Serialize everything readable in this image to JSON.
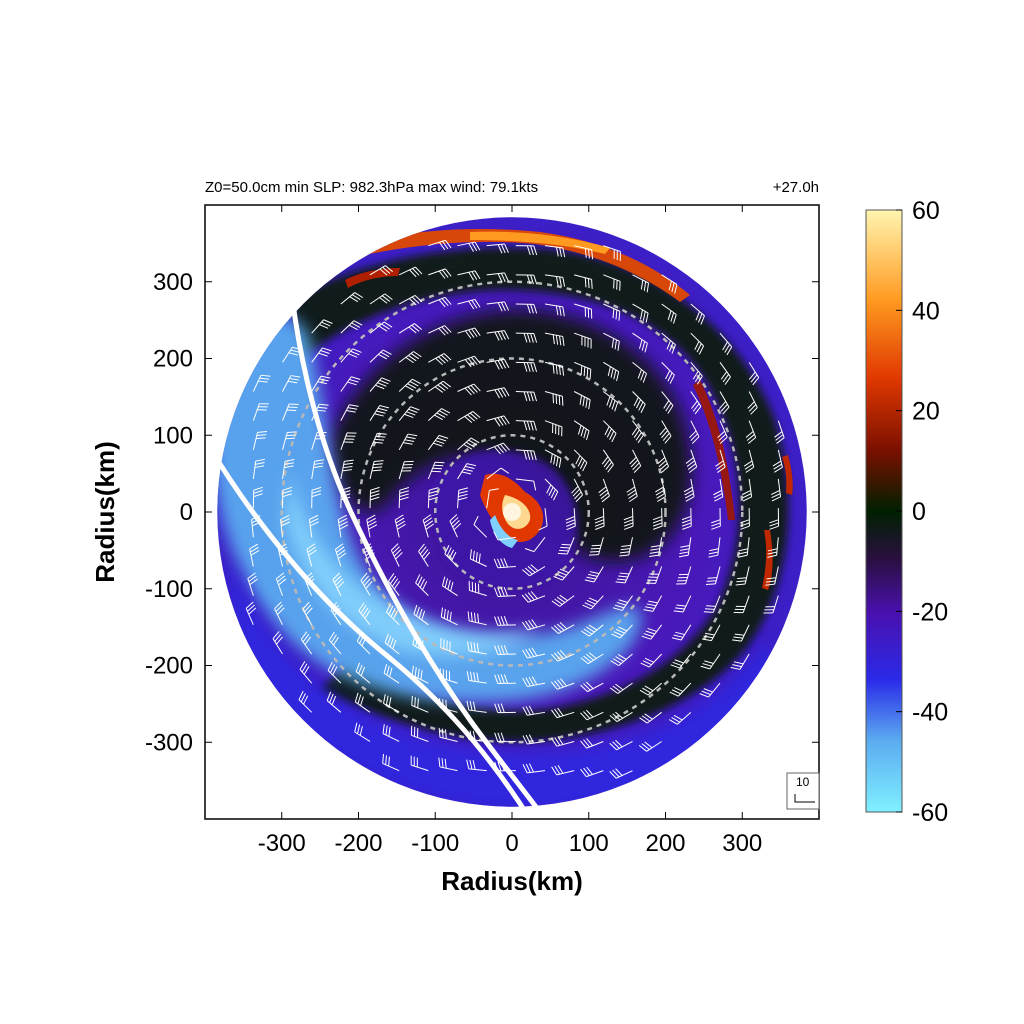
{
  "header": {
    "left_text": "Z0=50.0cm  min SLP: 982.3hPa   max wind: 79.1kts",
    "right_text": "+27.0h"
  },
  "chart_data": {
    "type": "heatmap",
    "projection": "polar storm-centered field on x/y radius grid",
    "xlabel": "Radius(km)",
    "ylabel": "Radius(km)",
    "xlim": [
      -400,
      400
    ],
    "ylim": [
      -400,
      400
    ],
    "x_ticks": [
      -300,
      -200,
      -100,
      0,
      100,
      200,
      300
    ],
    "y_ticks": [
      300,
      200,
      100,
      0,
      -100,
      -200,
      -300
    ],
    "domain_radius_km": 400,
    "colorbar": {
      "range": [
        -60,
        60
      ],
      "ticks": [
        60,
        40,
        20,
        0,
        -20,
        -40,
        -60
      ],
      "colors": [
        "#80f0ff",
        "#5aaaf0",
        "#2a2ae8",
        "#4a10b0",
        "#2a1040",
        "#002000",
        "#7a1000",
        "#e03800",
        "#ff9a20",
        "#fff5b0"
      ]
    },
    "range_rings_km": [
      100,
      200,
      300
    ],
    "coastline_color": "#ffffff",
    "wind_barb_key": {
      "label": "10",
      "units": "kts"
    },
    "colors": {
      "background_outside": "#ffffff",
      "ring_color": "#b8b8b8",
      "barb_color": "#ffffff"
    }
  }
}
